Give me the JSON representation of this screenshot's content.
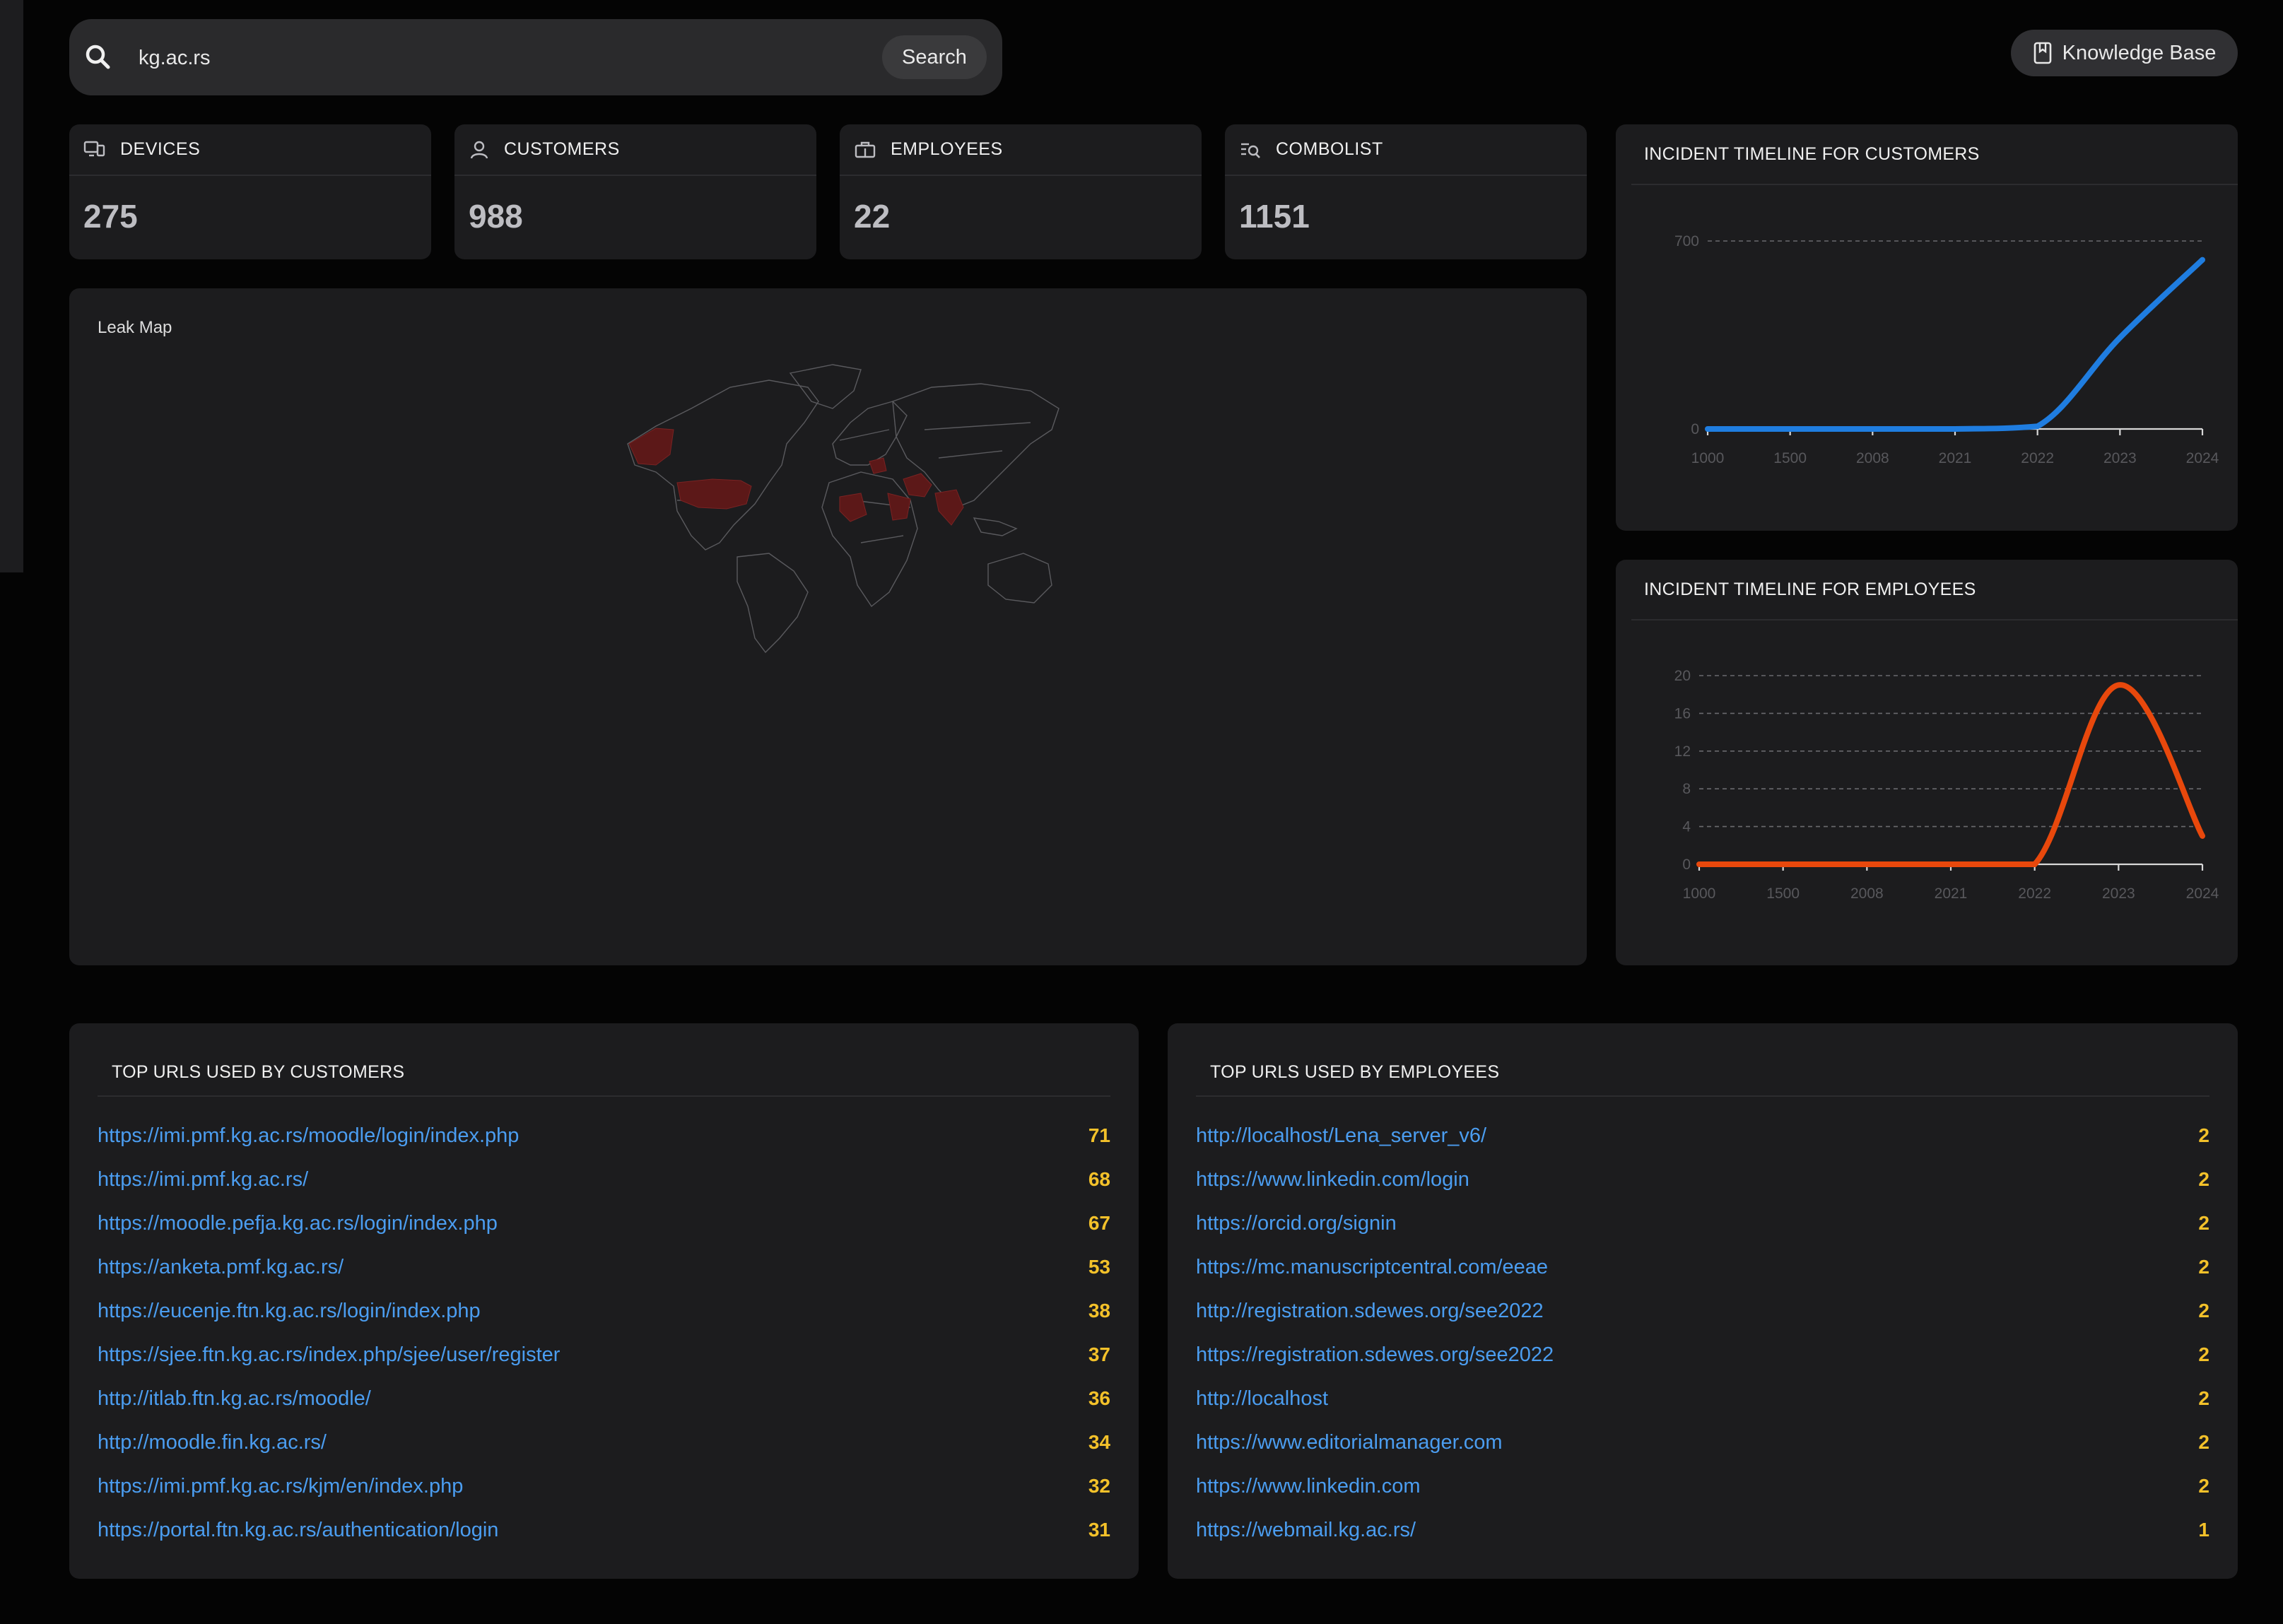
{
  "search": {
    "value": "kg.ac.rs",
    "button_label": "Search"
  },
  "knowledge_base_label": "Knowledge Base",
  "stats": [
    {
      "label": "DEVICES",
      "value": "275",
      "icon": "monitor-icon"
    },
    {
      "label": "CUSTOMERS",
      "value": "988",
      "icon": "user-icon"
    },
    {
      "label": "EMPLOYEES",
      "value": "22",
      "icon": "briefcase-icon"
    },
    {
      "label": "COMBOLIST",
      "value": "1151",
      "icon": "list-search-icon"
    }
  ],
  "leak_map": {
    "title": "Leak Map",
    "highlight_color": "#5c1818",
    "highlighted_regions": [
      "Alaska",
      "United States",
      "Libya",
      "Balkans",
      "Iran",
      "Saudi Arabia",
      "India"
    ]
  },
  "charts": {
    "customers": {
      "title": "INCIDENT TIMELINE FOR CUSTOMERS"
    },
    "employees": {
      "title": "INCIDENT TIMELINE FOR EMPLOYEES"
    }
  },
  "chart_data": [
    {
      "type": "line",
      "title": "INCIDENT TIMELINE FOR CUSTOMERS",
      "categories": [
        "1000",
        "1500",
        "2008",
        "2021",
        "2022",
        "2023",
        "2024"
      ],
      "values": [
        0,
        0,
        0,
        0,
        10,
        340,
        630
      ],
      "y_ticks": [
        0,
        700
      ],
      "ylim": [
        0,
        700
      ],
      "color": "#1f7de0",
      "grid": true
    },
    {
      "type": "line",
      "title": "INCIDENT TIMELINE FOR EMPLOYEES",
      "categories": [
        "1000",
        "1500",
        "2008",
        "2021",
        "2022",
        "2023",
        "2024"
      ],
      "values": [
        0,
        0,
        0,
        0,
        0,
        19,
        3
      ],
      "y_ticks": [
        0,
        4,
        8,
        12,
        16,
        20
      ],
      "ylim": [
        0,
        20
      ],
      "color": "#e8480c",
      "grid": true
    }
  ],
  "top_urls_customers": {
    "title": "TOP URLS USED BY CUSTOMERS",
    "rows": [
      {
        "url": "https://imi.pmf.kg.ac.rs/moodle/login/index.php",
        "count": "71"
      },
      {
        "url": "https://imi.pmf.kg.ac.rs/",
        "count": "68"
      },
      {
        "url": "https://moodle.pefja.kg.ac.rs/login/index.php",
        "count": "67"
      },
      {
        "url": "https://anketa.pmf.kg.ac.rs/",
        "count": "53"
      },
      {
        "url": "https://eucenje.ftn.kg.ac.rs/login/index.php",
        "count": "38"
      },
      {
        "url": "https://sjee.ftn.kg.ac.rs/index.php/sjee/user/register",
        "count": "37"
      },
      {
        "url": "http://itlab.ftn.kg.ac.rs/moodle/",
        "count": "36"
      },
      {
        "url": "http://moodle.fin.kg.ac.rs/",
        "count": "34"
      },
      {
        "url": "https://imi.pmf.kg.ac.rs/kjm/en/index.php",
        "count": "32"
      },
      {
        "url": "https://portal.ftn.kg.ac.rs/authentication/login",
        "count": "31"
      }
    ]
  },
  "top_urls_employees": {
    "title": "TOP URLS USED BY EMPLOYEES",
    "rows": [
      {
        "url": "http://localhost/Lena_server_v6/",
        "count": "2"
      },
      {
        "url": "https://www.linkedin.com/login",
        "count": "2"
      },
      {
        "url": "https://orcid.org/signin",
        "count": "2"
      },
      {
        "url": "https://mc.manuscriptcentral.com/eeae",
        "count": "2"
      },
      {
        "url": "http://registration.sdewes.org/see2022",
        "count": "2"
      },
      {
        "url": "https://registration.sdewes.org/see2022",
        "count": "2"
      },
      {
        "url": "http://localhost",
        "count": "2"
      },
      {
        "url": "https://www.editorialmanager.com",
        "count": "2"
      },
      {
        "url": "https://www.linkedin.com",
        "count": "2"
      },
      {
        "url": "https://webmail.kg.ac.rs/",
        "count": "1"
      }
    ]
  }
}
